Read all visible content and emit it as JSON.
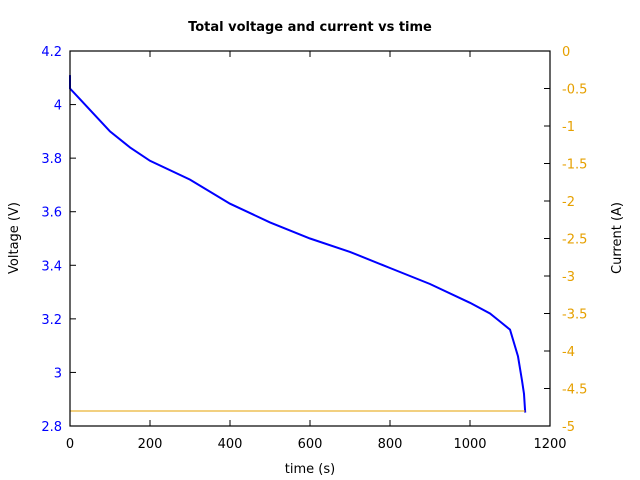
{
  "chart_data": {
    "type": "line",
    "title": "Total voltage and current vs time",
    "xlabel": "time (s)",
    "ylabel": "Voltage (V)",
    "y2label": "Current (A)",
    "xlim": [
      0,
      1200
    ],
    "ylim": [
      2.8,
      4.2
    ],
    "y2lim": [
      -5,
      0
    ],
    "x_ticks": [
      "0",
      "200",
      "400",
      "600",
      "800",
      "1000",
      "1200"
    ],
    "y_ticks": [
      "2.8",
      "3",
      "3.2",
      "3.4",
      "3.6",
      "3.8",
      "4",
      "4.2"
    ],
    "y2_ticks": [
      "-5",
      "-4.5",
      "-4",
      "-3.5",
      "-3",
      "-2.5",
      "-2",
      "-1.5",
      "-1",
      "-0.5",
      "0"
    ],
    "grid": false,
    "legend": null,
    "series": [
      {
        "name": "Voltage",
        "axis": "left",
        "color": "#0000ff",
        "x": [
          0,
          0,
          25,
          50,
          100,
          150,
          200,
          300,
          400,
          500,
          600,
          700,
          800,
          900,
          1000,
          1050,
          1075,
          1100,
          1120,
          1130,
          1135,
          1138
        ],
        "y": [
          4.11,
          4.06,
          4.02,
          3.98,
          3.9,
          3.84,
          3.79,
          3.72,
          3.63,
          3.56,
          3.5,
          3.45,
          3.39,
          3.33,
          3.26,
          3.22,
          3.19,
          3.16,
          3.06,
          2.97,
          2.92,
          2.85
        ]
      },
      {
        "name": "Current",
        "axis": "right",
        "color": "#e6a000",
        "x": [
          0,
          1138
        ],
        "y": [
          -4.8,
          -4.8
        ]
      }
    ]
  }
}
